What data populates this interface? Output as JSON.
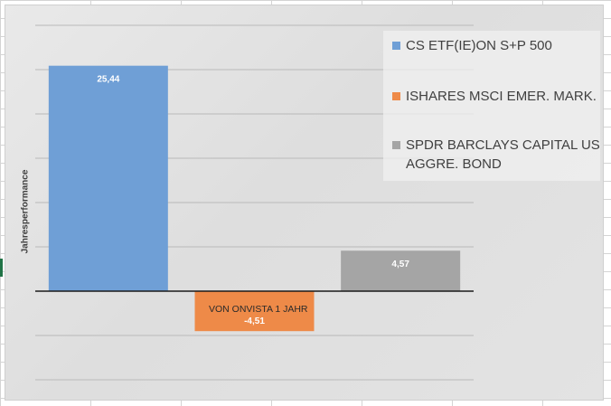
{
  "chart_data": {
    "type": "bar",
    "categories": [
      "CS ETF(IE)ON S+P 500",
      "ISHARES MSCI EMER. MARK.",
      "SPDR BARCLAYS CAPITAL US AGGRE. BOND"
    ],
    "values": [
      25.44,
      -4.51,
      4.57
    ],
    "value_labels": [
      "25,44",
      "-4,51",
      "4,57"
    ],
    "colors": [
      "#6f9fd6",
      "#ee8a48",
      "#a5a5a5"
    ],
    "ylabel": "Jahresperformance",
    "xlabel": "",
    "ylim": [
      -10,
      30
    ],
    "grid": true,
    "legend_position": "top-right",
    "annotation": "VON ONVISTA   1 JAHR"
  },
  "legend": [
    {
      "label": "CS ETF(IE)ON S+P 500",
      "color": "#6f9fd6"
    },
    {
      "label": "ISHARES MSCI EMER. MARK.",
      "color": "#ee8a48"
    },
    {
      "label": "SPDR BARCLAYS CAPITAL US AGGRE. BOND",
      "color": "#a5a5a5"
    }
  ]
}
